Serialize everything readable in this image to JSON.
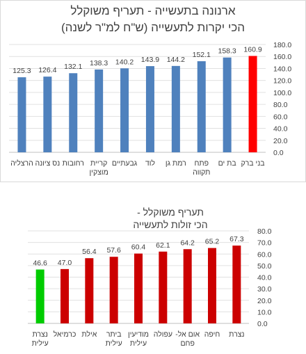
{
  "chart_data": [
    {
      "type": "bar",
      "title_lines": [
        "ארנונה בתעשייה - תעריף משוקלל",
        "הכי יקרות לתעשייה (ש\"ח למ\"ר לשנה)"
      ],
      "categories": [
        [
          "בני ברק"
        ],
        [
          "בת ים"
        ],
        [
          "פתח",
          "תקווה"
        ],
        [
          "רמת גן"
        ],
        [
          "לוד"
        ],
        [
          "גבעתיים"
        ],
        [
          "קריית",
          "מוצקין"
        ],
        [
          "רחובות"
        ],
        [
          "נס ציונה"
        ],
        [
          "הרצליה"
        ]
      ],
      "values": [
        160.9,
        158.3,
        152.1,
        144.2,
        143.9,
        140.2,
        138.3,
        132.1,
        126.4,
        125.3
      ],
      "value_labels": [
        "160.9",
        "158.3",
        "152.1",
        "144.2",
        "143.9",
        "140.2",
        "138.3",
        "132.1",
        "126.4",
        "125.3"
      ],
      "colors": [
        "#ff0000",
        "#4f81bd",
        "#4f81bd",
        "#4f81bd",
        "#4f81bd",
        "#4f81bd",
        "#4f81bd",
        "#4f81bd",
        "#4f81bd",
        "#4f81bd"
      ],
      "yticks": [
        "0.0",
        "20.0",
        "40.0",
        "60.0",
        "80.0",
        "100.0",
        "120.0",
        "140.0",
        "160.0",
        "180.0"
      ],
      "ylim": [
        0,
        180
      ],
      "grid": true,
      "axis_side": "right"
    },
    {
      "type": "bar",
      "title_lines": [
        "תעריף משוקלל -",
        "הכי זולות לתעשייה"
      ],
      "categories": [
        [
          "נצרת"
        ],
        [
          "חיפה"
        ],
        [
          "אום אל-",
          "פחם"
        ],
        [
          "עפולה"
        ],
        [
          "מודיעין",
          "עילית"
        ],
        [
          "ביתר",
          "עילית"
        ],
        [
          "אילת"
        ],
        [
          "כרמיאל"
        ],
        [
          "נצרת",
          "עילית"
        ]
      ],
      "values": [
        67.3,
        65.2,
        64.2,
        62.1,
        60.4,
        57.6,
        56.4,
        47.0,
        46.6
      ],
      "value_labels": [
        "67.3",
        "65.2",
        "64.2",
        "62.1",
        "60.4",
        "57.6",
        "56.4",
        "47.0",
        "46.6"
      ],
      "colors": [
        "#cc0000",
        "#cc0000",
        "#cc0000",
        "#cc0000",
        "#cc0000",
        "#cc0000",
        "#cc0000",
        "#cc0000",
        "#00cc00"
      ],
      "yticks": [
        "0.0",
        "10.0",
        "20.0",
        "30.0",
        "40.0",
        "50.0",
        "60.0",
        "70.0",
        "80.0"
      ],
      "ylim": [
        0,
        80
      ],
      "grid": true,
      "axis_side": "right"
    }
  ]
}
